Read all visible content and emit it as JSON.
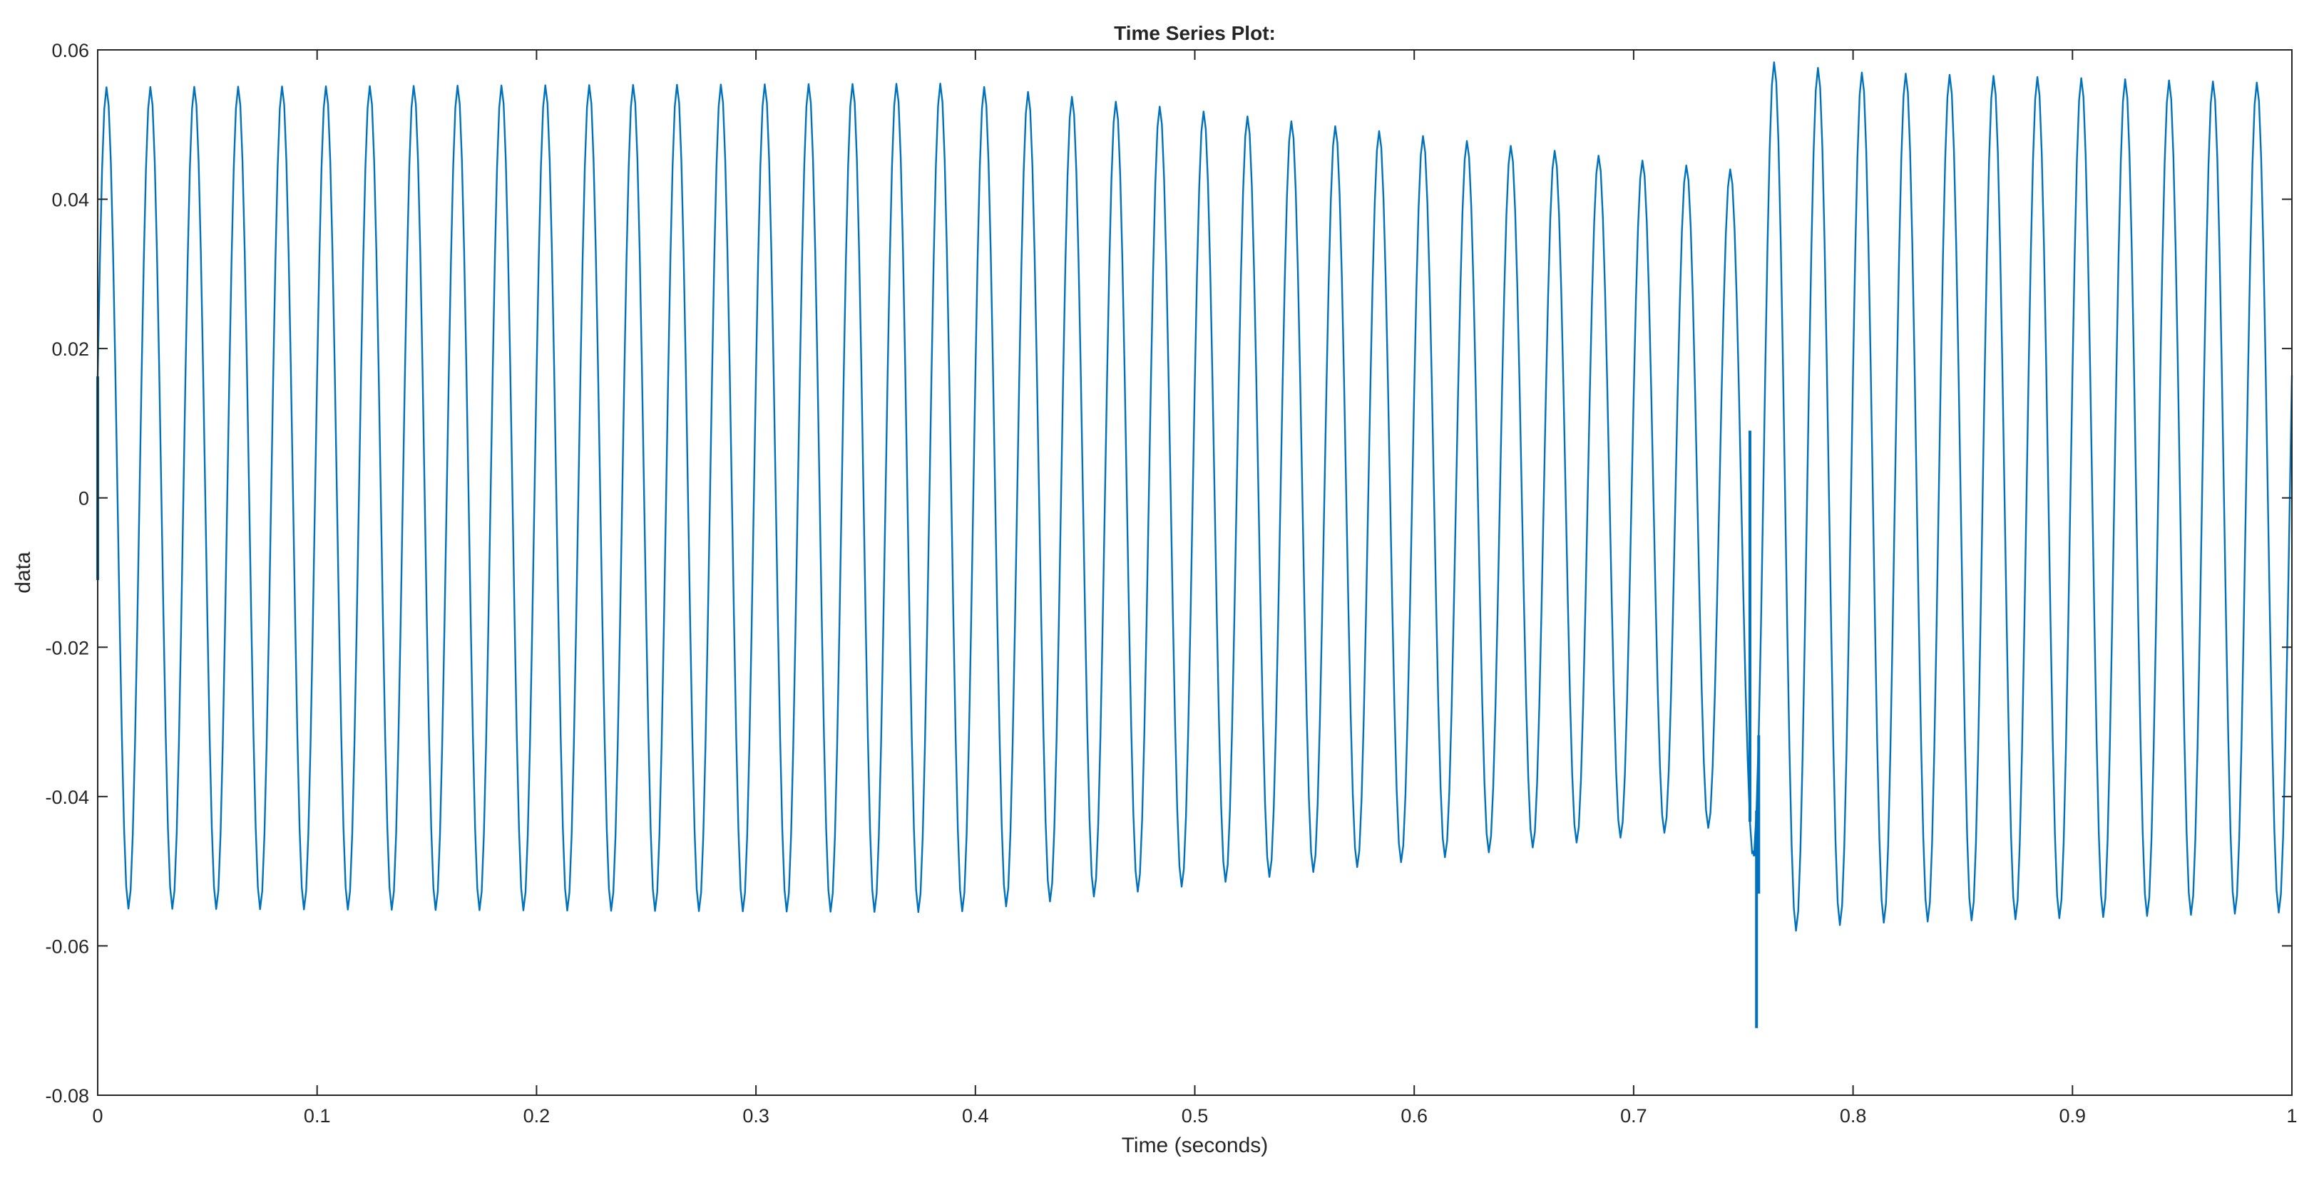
{
  "chart_data": {
    "type": "line",
    "title": "Time Series Plot:",
    "xlabel": "Time (seconds)",
    "ylabel": "data",
    "xlim": [
      0,
      1
    ],
    "ylim": [
      -0.08,
      0.06
    ],
    "xticks": [
      0,
      0.1,
      0.2,
      0.3,
      0.4,
      0.5,
      0.6,
      0.7,
      0.8,
      0.9,
      1
    ],
    "xtick_labels": [
      "0",
      "0.1",
      "0.2",
      "0.3",
      "0.4",
      "0.5",
      "0.6",
      "0.7",
      "0.8",
      "0.9",
      "1"
    ],
    "yticks": [
      0.06,
      0.04,
      0.02,
      0,
      -0.02,
      -0.04,
      -0.06,
      -0.08
    ],
    "ytick_labels": [
      "0.06",
      "0.04",
      "0.02",
      "0",
      "-0.02",
      "-0.04",
      "-0.06",
      "-0.08"
    ],
    "grid": false,
    "box": true,
    "colors": {
      "series": "#0072BD",
      "axes": "#262626",
      "background": "#ffffff"
    },
    "series": [
      {
        "frequency_hz": 50,
        "samples": 1000,
        "amplitude_envelope": [
          [
            0,
            0.055
          ],
          [
            0.39,
            0.0555
          ],
          [
            0.74,
            0.044
          ],
          [
            0.752,
            0.044
          ],
          [
            0.76,
            0.0585
          ],
          [
            0.8,
            0.057
          ],
          [
            1,
            0.0555
          ]
        ],
        "transients": [
          {
            "t": 0.0,
            "value": -0.011
          },
          {
            "t": 0.0,
            "value": 0.01
          },
          {
            "t": 0.753,
            "value": 0.009
          },
          {
            "t": 0.753,
            "value": 0.006
          },
          {
            "t": 0.755,
            "value": -0.048
          },
          {
            "t": 0.756,
            "value": -0.071
          },
          {
            "t": 0.757,
            "value": -0.053
          }
        ]
      }
    ]
  }
}
